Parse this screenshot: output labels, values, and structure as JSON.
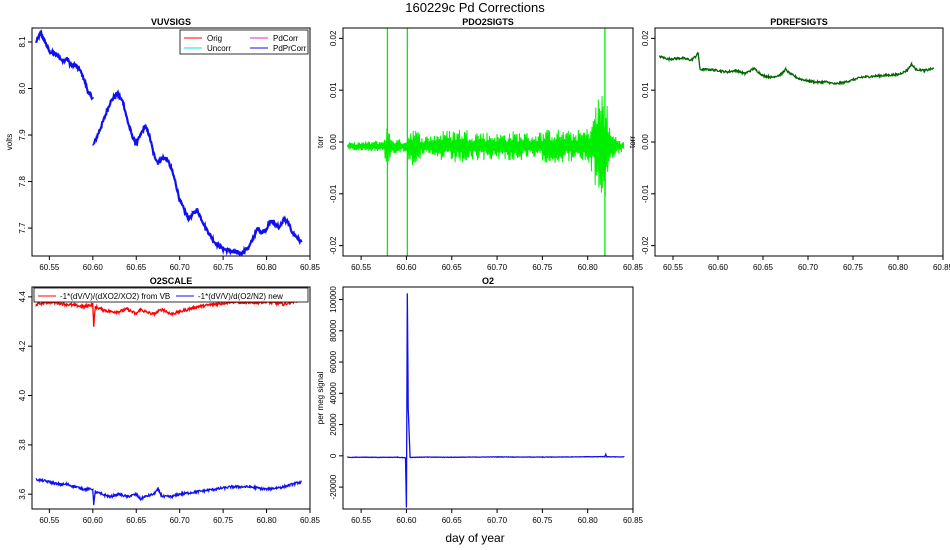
{
  "title": "160229c   Pd Corrections",
  "xlabel": "day of year",
  "colors": {
    "red": "#ff0000",
    "cyan": "#00e5e5",
    "magenta": "#e020e0",
    "blue": "#1010ee",
    "green": "#00ee00",
    "darkgreen": "#006400"
  },
  "chart_data": [
    {
      "type": "line",
      "title": "VUVSIGS",
      "ylabel": "volts",
      "xlim": [
        60.53,
        60.85
      ],
      "ylim": [
        7.64,
        8.13
      ],
      "xticks": [
        "60.55",
        "60.60",
        "60.65",
        "60.70",
        "60.75",
        "60.80",
        "60.85"
      ],
      "yticks": [
        "7.7",
        "7.8",
        "7.9",
        "8.0",
        "8.1"
      ],
      "legend": {
        "position": "top-right",
        "entries": [
          {
            "name": "Orig",
            "color": "#ff0000"
          },
          {
            "name": "Uncorr",
            "color": "#00e5e5"
          },
          {
            "name": "PdCorr",
            "color": "#e020e0"
          },
          {
            "name": "PdPrCorr",
            "color": "#1010ee"
          }
        ]
      },
      "series": [
        {
          "name": "PdPrCorr",
          "color": "#1010ee",
          "noise": 0.004,
          "points": [
            [
              60.535,
              8.1
            ],
            [
              60.54,
              8.12
            ],
            [
              60.545,
              8.1
            ],
            [
              60.55,
              8.08
            ],
            [
              60.56,
              8.07
            ],
            [
              60.565,
              8.06
            ],
            [
              60.57,
              8.065
            ],
            [
              60.575,
              8.05
            ],
            [
              60.58,
              8.05
            ],
            [
              60.585,
              8.04
            ],
            [
              60.59,
              8.02
            ],
            [
              60.595,
              7.99
            ],
            [
              60.6,
              7.98
            ],
            null,
            [
              60.601,
              7.88
            ],
            [
              60.61,
              7.92
            ],
            [
              60.62,
              7.97
            ],
            [
              60.628,
              7.99
            ],
            [
              60.635,
              7.97
            ],
            [
              60.64,
              7.93
            ],
            [
              60.645,
              7.9
            ],
            [
              60.65,
              7.88
            ],
            [
              60.655,
              7.9
            ],
            [
              60.66,
              7.92
            ],
            [
              60.665,
              7.9
            ],
            [
              60.67,
              7.86
            ],
            [
              60.675,
              7.84
            ],
            [
              60.68,
              7.85
            ],
            [
              60.685,
              7.85
            ],
            [
              60.69,
              7.83
            ],
            [
              60.695,
              7.8
            ],
            [
              60.7,
              7.76
            ],
            [
              60.71,
              7.72
            ],
            [
              60.715,
              7.73
            ],
            [
              60.72,
              7.74
            ],
            [
              60.73,
              7.7
            ],
            [
              60.74,
              7.67
            ],
            [
              60.75,
              7.655
            ],
            [
              60.76,
              7.65
            ],
            [
              60.77,
              7.645
            ],
            [
              60.78,
              7.66
            ],
            [
              60.785,
              7.68
            ],
            [
              60.79,
              7.7
            ],
            [
              60.795,
              7.69
            ],
            [
              60.8,
              7.7
            ],
            [
              60.805,
              7.715
            ],
            [
              60.81,
              7.71
            ],
            [
              60.815,
              7.7
            ],
            [
              60.82,
              7.72
            ],
            [
              60.825,
              7.71
            ],
            [
              60.83,
              7.69
            ],
            [
              60.835,
              7.68
            ],
            [
              60.84,
              7.67
            ]
          ]
        }
      ]
    },
    {
      "type": "line",
      "title": "PDO2SIGTS",
      "ylabel": "torr",
      "xlim": [
        60.53,
        60.85
      ],
      "ylim": [
        -0.022,
        0.022
      ],
      "xticks": [
        "60.55",
        "60.60",
        "60.65",
        "60.70",
        "60.75",
        "60.80",
        "60.85"
      ],
      "yticks": [
        "-0.02",
        "-0.01",
        "0.00",
        "0.01",
        "0.02"
      ],
      "series": [
        {
          "name": "",
          "color": "#00ee00",
          "baseline": -0.0008,
          "envelope": [
            [
              60.535,
              0.0007
            ],
            [
              60.575,
              0.0012
            ],
            [
              60.578,
              0.004
            ],
            [
              60.585,
              0.0015
            ],
            [
              60.6,
              0.0012
            ],
            [
              60.605,
              0.004
            ],
            [
              60.62,
              0.002
            ],
            [
              60.64,
              0.003
            ],
            [
              60.66,
              0.0035
            ],
            [
              60.68,
              0.003
            ],
            [
              60.7,
              0.0025
            ],
            [
              60.72,
              0.003
            ],
            [
              60.74,
              0.0025
            ],
            [
              60.76,
              0.0035
            ],
            [
              60.78,
              0.003
            ],
            [
              60.8,
              0.0035
            ],
            [
              60.805,
              0.006
            ],
            [
              60.81,
              0.009
            ],
            [
              60.815,
              0.012
            ],
            [
              60.82,
              0.01
            ],
            [
              60.825,
              0.003
            ],
            [
              60.84,
              0.0008
            ]
          ],
          "spikes": [
            [
              60.579,
              -0.022,
              0.022
            ],
            [
              60.601,
              -0.022,
              0.022
            ],
            [
              60.819,
              -0.022,
              0.022
            ]
          ]
        }
      ]
    },
    {
      "type": "line",
      "title": "PDREFSIGTS",
      "ylabel": "torr",
      "xlim": [
        60.53,
        60.85
      ],
      "ylim": [
        -0.022,
        0.022
      ],
      "xticks": [
        "60.55",
        "60.60",
        "60.65",
        "60.70",
        "60.75",
        "60.80",
        "60.85"
      ],
      "yticks": [
        "-0.02",
        "-0.01",
        "0.00",
        "0.01",
        "0.02"
      ],
      "series": [
        {
          "name": "",
          "color": "#006400",
          "noise": 0.0002,
          "points": [
            [
              60.535,
              0.0165
            ],
            [
              60.545,
              0.016
            ],
            [
              60.56,
              0.0162
            ],
            [
              60.57,
              0.0158
            ],
            [
              60.575,
              0.0165
            ],
            [
              60.578,
              0.0172
            ],
            [
              60.58,
              0.014
            ],
            [
              60.59,
              0.014
            ],
            [
              60.6,
              0.0138
            ],
            [
              60.61,
              0.0135
            ],
            [
              60.62,
              0.0138
            ],
            [
              60.63,
              0.0132
            ],
            [
              60.64,
              0.0142
            ],
            [
              60.65,
              0.0128
            ],
            [
              60.66,
              0.0125
            ],
            [
              60.67,
              0.013
            ],
            [
              60.675,
              0.014
            ],
            [
              60.68,
              0.0132
            ],
            [
              60.69,
              0.0122
            ],
            [
              60.7,
              0.0118
            ],
            [
              60.71,
              0.0115
            ],
            [
              60.72,
              0.0116
            ],
            [
              60.73,
              0.0112
            ],
            [
              60.74,
              0.0115
            ],
            [
              60.75,
              0.012
            ],
            [
              60.76,
              0.0125
            ],
            [
              60.78,
              0.0128
            ],
            [
              60.8,
              0.013
            ],
            [
              60.81,
              0.0138
            ],
            [
              60.815,
              0.015
            ],
            [
              60.82,
              0.014
            ],
            [
              60.83,
              0.0138
            ],
            [
              60.84,
              0.0142
            ]
          ]
        }
      ]
    },
    {
      "type": "line",
      "title": "O2SCALE",
      "ylabel": "",
      "xlim": [
        60.53,
        60.85
      ],
      "ylim": [
        3.54,
        4.44
      ],
      "xticks": [
        "60.55",
        "60.60",
        "60.65",
        "60.70",
        "60.75",
        "60.80",
        "60.85"
      ],
      "yticks": [
        "3.6",
        "3.8",
        "4.0",
        "4.2",
        "4.4"
      ],
      "legend": {
        "position": "top",
        "entries": [
          {
            "name": "-1*(dV/V)/(dXO2/XO2) from VB",
            "color": "#ff0000"
          },
          {
            "name": "-1*(dV/V)/d(O2/N2) new",
            "color": "#1010ee"
          }
        ]
      },
      "series": [
        {
          "name": "-1*(dV/V)/(dXO2/XO2) from VB",
          "color": "#ff0000",
          "noise": 0.006,
          "points": [
            [
              60.535,
              4.37
            ],
            [
              60.55,
              4.38
            ],
            [
              60.57,
              4.37
            ],
            [
              60.59,
              4.36
            ],
            [
              60.6,
              4.37
            ],
            [
              60.601,
              4.28
            ],
            [
              60.603,
              4.36
            ],
            [
              60.61,
              4.35
            ],
            [
              60.62,
              4.34
            ],
            [
              60.63,
              4.34
            ],
            [
              60.64,
              4.35
            ],
            [
              60.65,
              4.33
            ],
            [
              60.655,
              4.35
            ],
            [
              60.66,
              4.34
            ],
            [
              60.67,
              4.33
            ],
            [
              60.68,
              4.35
            ],
            [
              60.69,
              4.33
            ],
            [
              60.7,
              4.34
            ],
            [
              60.72,
              4.36
            ],
            [
              60.74,
              4.37
            ],
            [
              60.76,
              4.38
            ],
            [
              60.78,
              4.375
            ],
            [
              60.8,
              4.38
            ],
            [
              60.82,
              4.37
            ],
            [
              60.84,
              4.39
            ]
          ]
        },
        {
          "name": "-1*(dV/V)/d(O2/N2) new",
          "color": "#1010ee",
          "noise": 0.005,
          "points": [
            [
              60.535,
              3.66
            ],
            [
              60.55,
              3.65
            ],
            [
              60.56,
              3.64
            ],
            [
              60.57,
              3.64
            ],
            [
              60.58,
              3.63
            ],
            [
              60.59,
              3.62
            ],
            [
              60.6,
              3.62
            ],
            [
              60.601,
              3.56
            ],
            [
              60.603,
              3.61
            ],
            [
              60.61,
              3.6
            ],
            [
              60.62,
              3.59
            ],
            [
              60.63,
              3.6
            ],
            [
              60.64,
              3.59
            ],
            [
              60.65,
              3.6
            ],
            [
              60.655,
              3.58
            ],
            [
              60.66,
              3.59
            ],
            [
              60.67,
              3.6
            ],
            [
              60.675,
              3.62
            ],
            [
              60.68,
              3.59
            ],
            [
              60.69,
              3.59
            ],
            [
              60.7,
              3.6
            ],
            [
              60.72,
              3.61
            ],
            [
              60.74,
              3.62
            ],
            [
              60.76,
              3.63
            ],
            [
              60.78,
              3.63
            ],
            [
              60.8,
              3.62
            ],
            [
              60.82,
              3.63
            ],
            [
              60.84,
              3.65
            ]
          ]
        }
      ]
    },
    {
      "type": "line",
      "title": "O2",
      "ylabel": "per meg signal",
      "xlim": [
        60.53,
        60.85
      ],
      "ylim": [
        -34000,
        108000
      ],
      "xticks": [
        "60.55",
        "60.60",
        "60.65",
        "60.70",
        "60.75",
        "60.80",
        "60.85"
      ],
      "yticks": [
        "-20000",
        "0",
        "20000",
        "40000",
        "60000",
        "80000",
        "100000"
      ],
      "series": [
        {
          "name": "",
          "color": "#1010ee",
          "noise": 120,
          "points": [
            [
              60.535,
              -1000
            ],
            [
              60.55,
              -900
            ],
            [
              60.57,
              -1000
            ],
            [
              60.59,
              -900
            ],
            [
              60.599,
              -1200
            ],
            [
              60.6,
              -33000
            ],
            [
              60.601,
              104000
            ],
            [
              60.602,
              30000
            ],
            [
              60.604,
              -1000
            ],
            [
              60.62,
              -800
            ],
            [
              60.65,
              -900
            ],
            [
              60.7,
              -700
            ],
            [
              60.75,
              -800
            ],
            [
              60.8,
              -600
            ],
            [
              60.819,
              -500
            ],
            [
              60.82,
              1000
            ],
            [
              60.821,
              -600
            ],
            [
              60.84,
              -700
            ]
          ]
        }
      ]
    }
  ]
}
